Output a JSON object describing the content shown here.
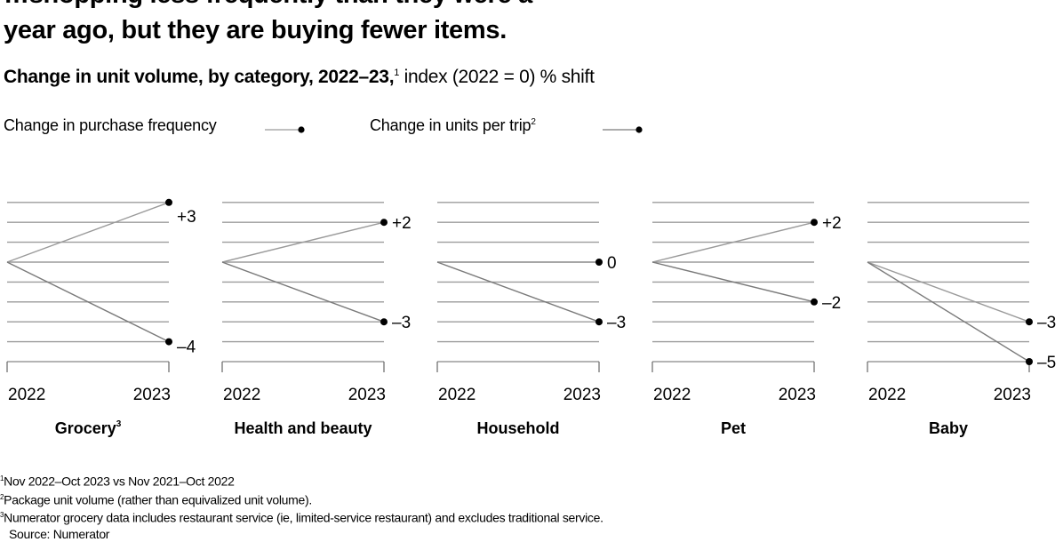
{
  "headline": {
    "line1": "…shopping less frequently than they were a",
    "line2": "year ago, but they are buying fewer items."
  },
  "subtitle": {
    "bold": "Change in unit volume, by category, 2022–23,",
    "sup": "1",
    "rest": " index (2022 = 0) % shift"
  },
  "legend": {
    "frequency_label": "Change in purchase frequency",
    "units_label": "Change in units per trip",
    "units_sup": "2"
  },
  "chart_data": {
    "type": "line",
    "ylim": [
      -5,
      3
    ],
    "grid": true,
    "legend_position": "top-left",
    "x": [
      "2022",
      "2023"
    ],
    "panels": [
      {
        "category": "Grocery",
        "category_sup": "3",
        "series": [
          {
            "name": "Change in purchase frequency",
            "values": [
              0,
              3
            ],
            "end_label": "+3"
          },
          {
            "name": "Change in units per trip",
            "values": [
              0,
              -4
            ],
            "end_label": "–4"
          }
        ]
      },
      {
        "category": "Health and beauty",
        "category_sup": "",
        "series": [
          {
            "name": "Change in purchase frequency",
            "values": [
              0,
              2
            ],
            "end_label": "+2"
          },
          {
            "name": "Change in units per trip",
            "values": [
              0,
              -3
            ],
            "end_label": "–3"
          }
        ]
      },
      {
        "category": "Household",
        "category_sup": "",
        "series": [
          {
            "name": "Change in purchase frequency",
            "values": [
              0,
              0
            ],
            "end_label": "0"
          },
          {
            "name": "Change in units per trip",
            "values": [
              0,
              -3
            ],
            "end_label": "–3"
          }
        ]
      },
      {
        "category": "Pet",
        "category_sup": "",
        "series": [
          {
            "name": "Change in purchase frequency",
            "values": [
              0,
              2
            ],
            "end_label": "+2"
          },
          {
            "name": "Change in units per trip",
            "values": [
              0,
              -2
            ],
            "end_label": "–2"
          }
        ]
      },
      {
        "category": "Baby",
        "category_sup": "",
        "series": [
          {
            "name": "Change in purchase frequency",
            "values": [
              0,
              -3
            ],
            "end_label": "–3"
          },
          {
            "name": "Change in units per trip",
            "values": [
              0,
              -5
            ],
            "end_label": "–5"
          }
        ]
      }
    ]
  },
  "footnotes": {
    "note1_sup": "1",
    "note1": "Nov 2022–Oct 2023 vs Nov 2021–Oct 2022",
    "note2_sup": "2",
    "note2": "Package unit volume (rather than equivalized unit volume).",
    "note3_sup": "3",
    "note3": "Numerator grocery data includes restaurant service (ie, limited-service restaurant) and excludes traditional service.",
    "source": "Source: Numerator"
  },
  "colors": {
    "frequency_line": "#9a9a9a",
    "units_line": "#7a7a7a",
    "grid": "#9c9c9c",
    "dot": "#000000",
    "text": "#000000"
  }
}
